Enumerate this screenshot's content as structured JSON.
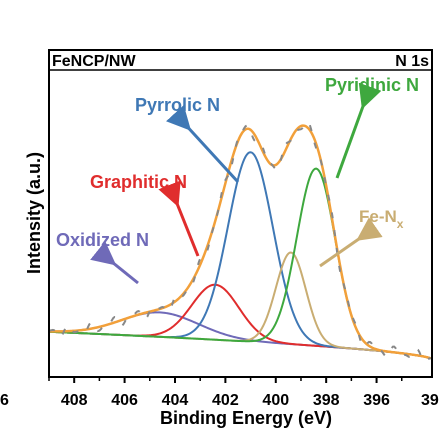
{
  "chart_data": {
    "type": "line",
    "sample_name": "FeNCP/NW",
    "region": "N 1s",
    "xlabel": "Binding Energy (eV)",
    "ylabel": "Intensity (a.u.)",
    "x_reversed": true,
    "xlim": [
      409,
      393.8
    ],
    "ylim": [
      0,
      1.07
    ],
    "x_ticks": [
      408,
      406,
      404,
      402,
      400,
      398,
      396
    ],
    "edge_tick_labels": {
      "left": "6",
      "right": "39"
    },
    "grid": false,
    "background": 0.148,
    "series": [
      {
        "name": "Oxidized N",
        "center": 404.6,
        "amplitude": 0.08,
        "fwhm": 3.6,
        "color": "#6f6ab8"
      },
      {
        "name": "Graphitic N",
        "center": 402.4,
        "amplitude": 0.18,
        "fwhm": 2.2,
        "color": "#e02d2d"
      },
      {
        "name": "Pyrrolic N",
        "center": 401.0,
        "amplitude": 0.62,
        "fwhm": 2.1,
        "color": "#3f78b5"
      },
      {
        "name": "Fe-N",
        "name_subscript": "x",
        "center": 399.4,
        "amplitude": 0.3,
        "fwhm": 1.4,
        "color": "#c9ad72"
      },
      {
        "name": "Pyridinic N",
        "center": 398.4,
        "amplitude": 0.58,
        "fwhm": 1.8,
        "color": "#3ea83e"
      }
    ],
    "envelope_color": "#f2a03a",
    "raw_data_color": "#888888",
    "arrows": [
      "Pyrrolic N",
      "Pyridinic N",
      "Graphitic N",
      "Oxidized N",
      "Fe-N"
    ]
  }
}
